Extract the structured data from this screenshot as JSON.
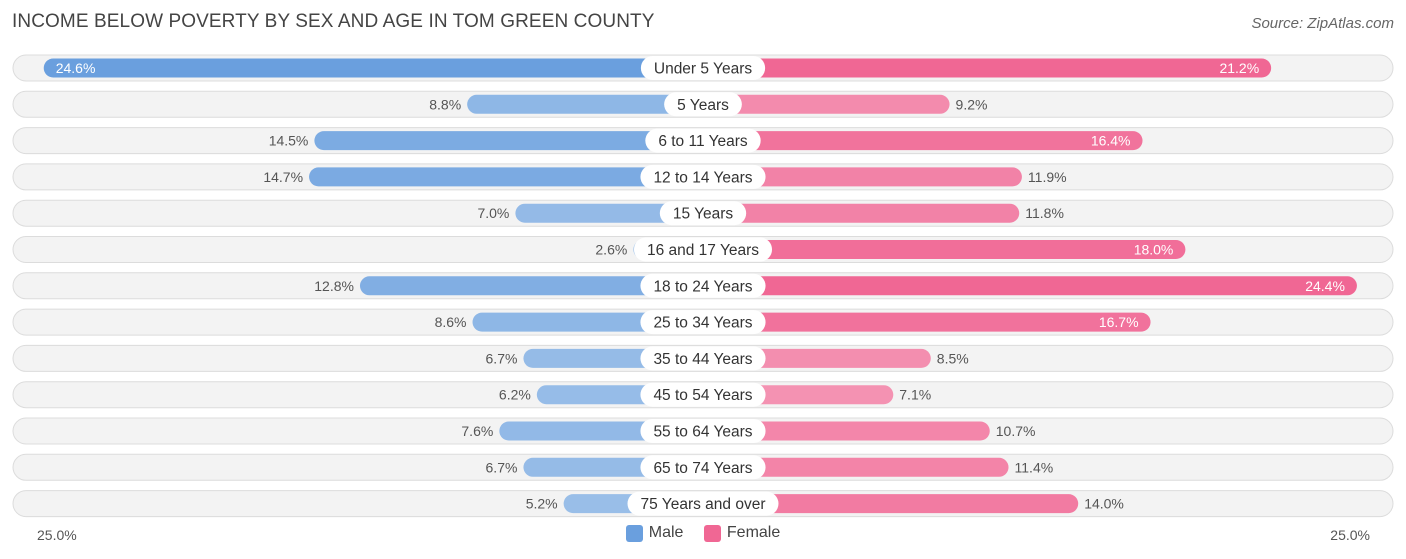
{
  "title": "INCOME BELOW POVERTY BY SEX AND AGE IN TOM GREEN COUNTY",
  "source": "Source: ZipAtlas.com",
  "colors": {
    "male_strong": "#6a9fde",
    "male_light": "#aac9ec",
    "female_strong": "#f06794",
    "female_light": "#f6aac3"
  },
  "chart_data": {
    "type": "bar",
    "orientation": "horizontal-diverging",
    "title": "INCOME BELOW POVERTY BY SEX AND AGE IN TOM GREEN COUNTY",
    "categories": [
      "Under 5 Years",
      "5 Years",
      "6 to 11 Years",
      "12 to 14 Years",
      "15 Years",
      "16 and 17 Years",
      "18 to 24 Years",
      "25 to 34 Years",
      "35 to 44 Years",
      "45 to 54 Years",
      "55 to 64 Years",
      "65 to 74 Years",
      "75 Years and over"
    ],
    "series": [
      {
        "name": "Male",
        "values": [
          24.6,
          8.8,
          14.5,
          14.7,
          7.0,
          2.6,
          12.8,
          8.6,
          6.7,
          6.2,
          7.6,
          6.7,
          5.2
        ]
      },
      {
        "name": "Female",
        "values": [
          21.2,
          9.2,
          16.4,
          11.9,
          11.8,
          18.0,
          24.4,
          16.7,
          8.5,
          7.1,
          10.7,
          11.4,
          14.0
        ]
      }
    ],
    "value_labels": {
      "male": [
        "24.6%",
        "8.8%",
        "14.5%",
        "14.7%",
        "7.0%",
        "2.6%",
        "12.8%",
        "8.6%",
        "6.7%",
        "6.2%",
        "7.6%",
        "6.7%",
        "5.2%"
      ],
      "female": [
        "21.2%",
        "9.2%",
        "16.4%",
        "11.9%",
        "11.8%",
        "18.0%",
        "24.4%",
        "16.7%",
        "8.5%",
        "7.1%",
        "10.7%",
        "11.4%",
        "14.0%"
      ]
    },
    "axis": {
      "min_label": "25.0%",
      "max_label": "25.0%",
      "max": 25.0
    },
    "legend": [
      "Male",
      "Female"
    ],
    "legend_position": "bottom-center"
  }
}
